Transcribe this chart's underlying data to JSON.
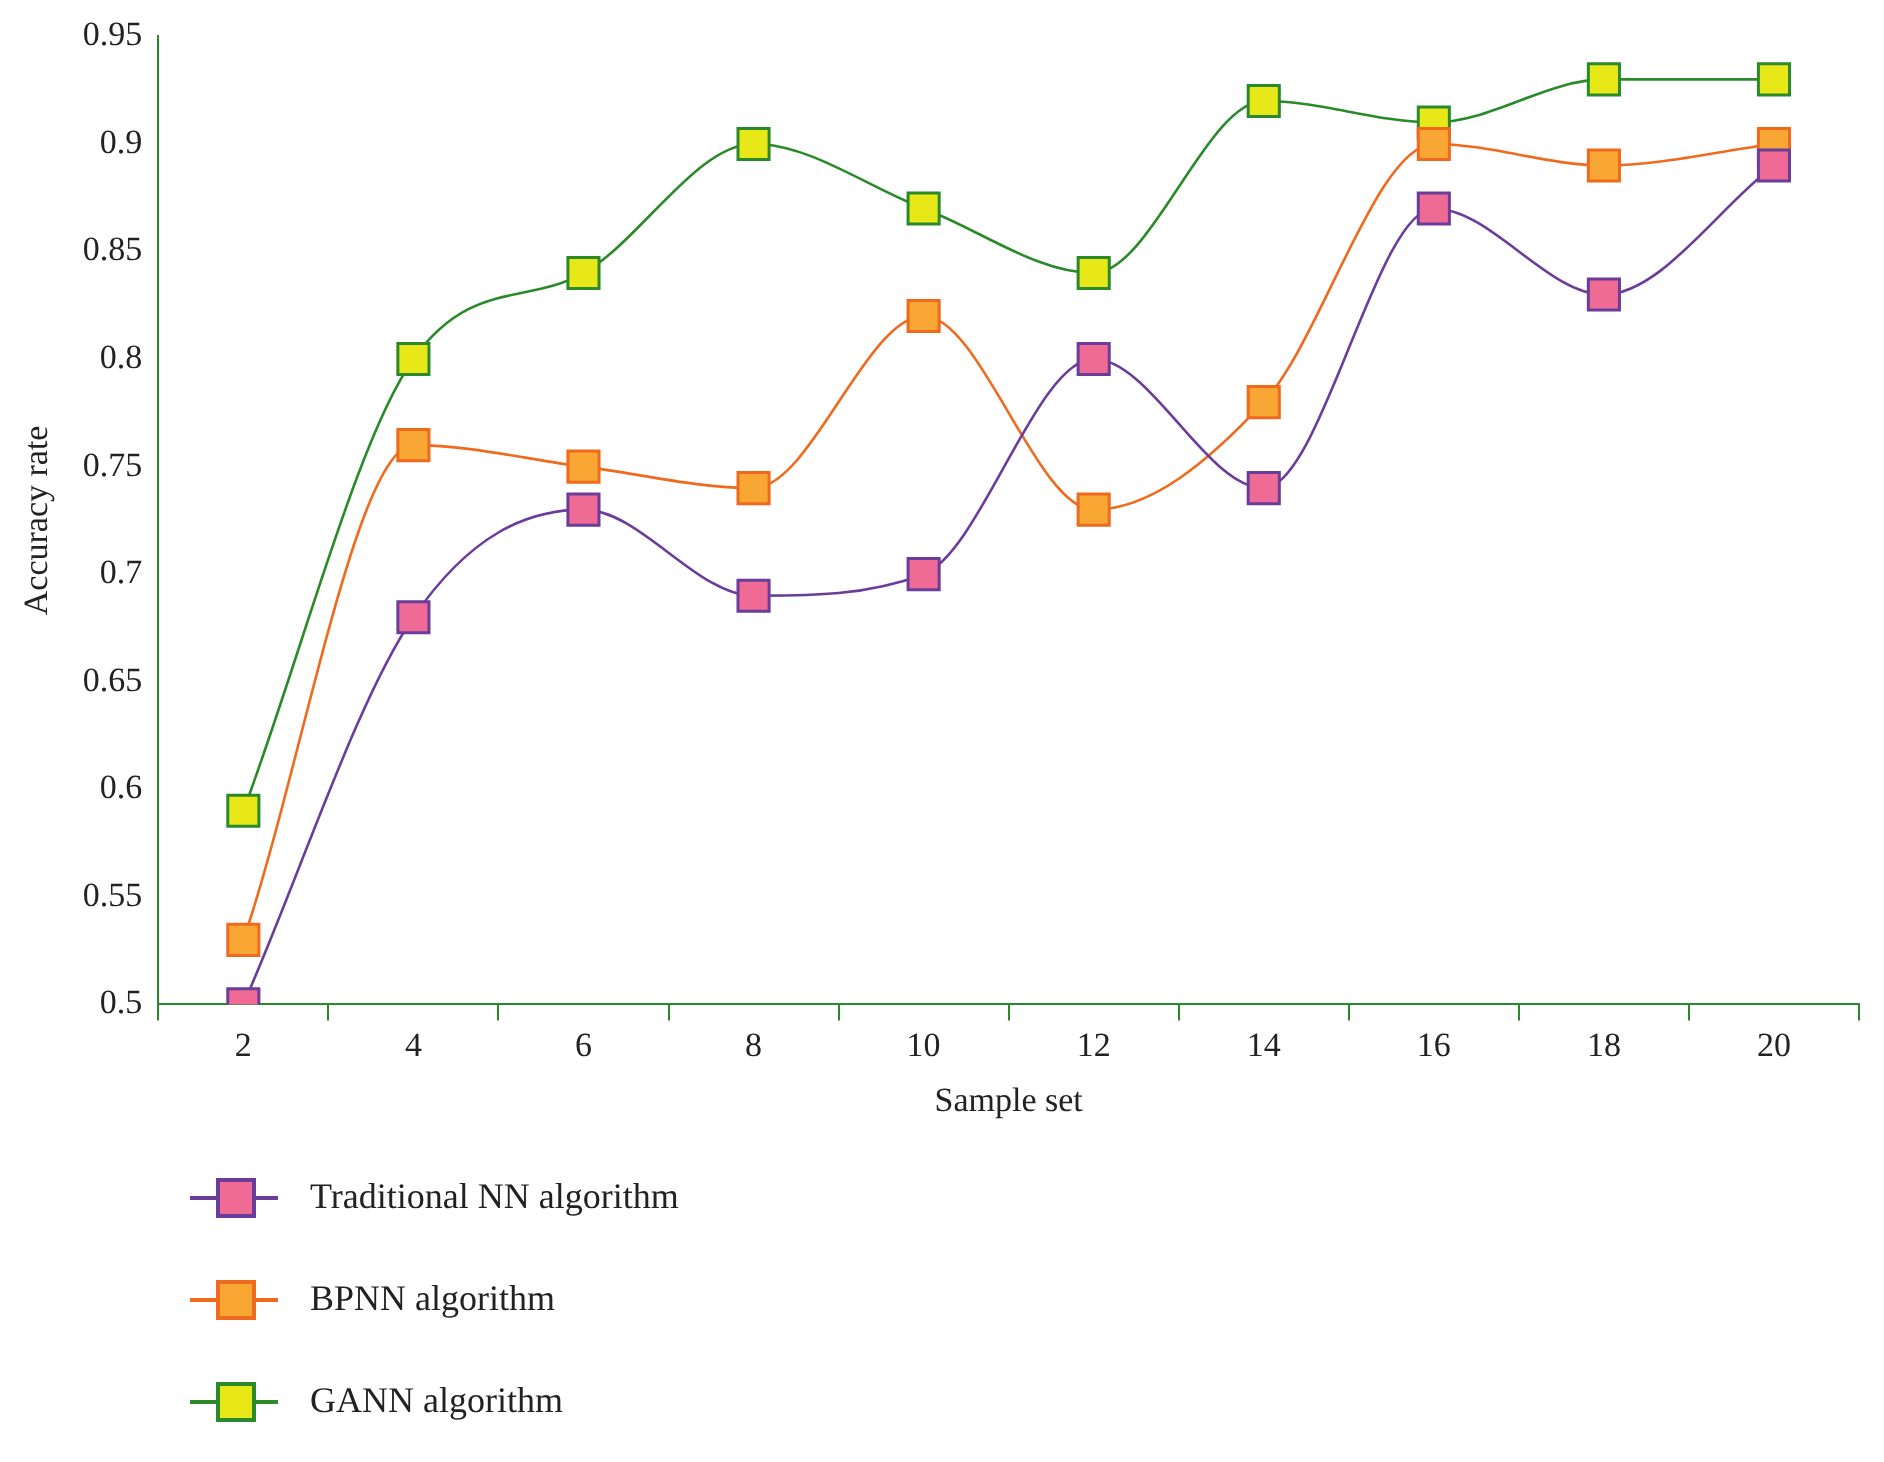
{
  "chart_data": {
    "type": "line",
    "xlabel": "Sample set",
    "ylabel": "Accuracy rate",
    "categories": [
      "2",
      "4",
      "6",
      "8",
      "10",
      "12",
      "14",
      "16",
      "18",
      "20"
    ],
    "series": [
      {
        "name": "Traditional NN algorithm",
        "color": "#f06a96",
        "values": [
          0.5,
          0.68,
          0.73,
          0.69,
          0.7,
          0.8,
          0.74,
          0.87,
          0.83,
          0.89
        ]
      },
      {
        "name": "BPNN algorithm",
        "color": "#f8a634",
        "values": [
          0.53,
          0.76,
          0.75,
          0.74,
          0.82,
          0.73,
          0.78,
          0.9,
          0.89,
          0.9
        ]
      },
      {
        "name": "GANN algorithm",
        "color": "#e8e818",
        "values": [
          0.59,
          0.8,
          0.84,
          0.9,
          0.87,
          0.84,
          0.92,
          0.91,
          0.93,
          0.93
        ]
      }
    ],
    "ylim": [
      0.5,
      0.95
    ],
    "yticks": [
      0.5,
      0.55,
      0.6,
      0.65,
      0.7,
      0.75,
      0.8,
      0.85,
      0.9,
      0.95
    ],
    "grid": false,
    "legend": "bottom",
    "marker": "square",
    "line_style": "solid"
  }
}
